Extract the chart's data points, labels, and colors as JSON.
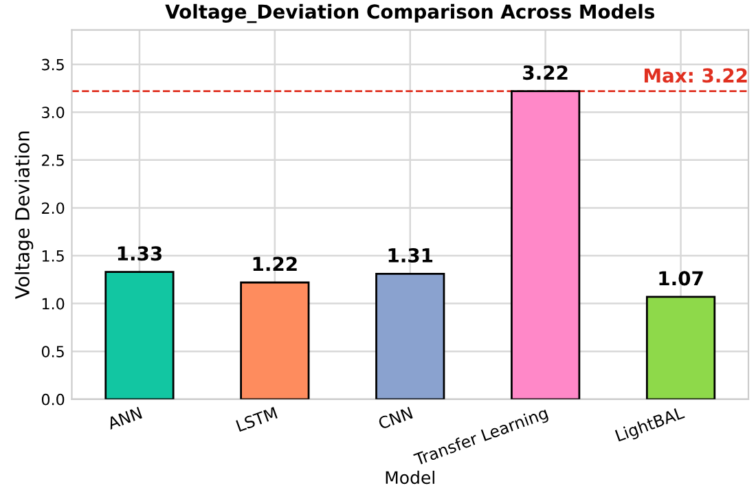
{
  "chart_data": {
    "type": "bar",
    "title": "Voltage_Deviation Comparison Across Models",
    "xlabel": "Model",
    "ylabel": "Voltage Deviation",
    "categories": [
      "ANN",
      "LSTM",
      "CNN",
      "Transfer Learning",
      "LightBAL"
    ],
    "values": [
      1.33,
      1.22,
      1.31,
      3.22,
      1.07
    ],
    "colors": [
      "#12c6a2",
      "#fe8c5e",
      "#8aa2cf",
      "#ff88c8",
      "#8ed94a"
    ],
    "ylim": [
      0,
      3.86
    ],
    "yticks": [
      {
        "value": 0,
        "label": "0.0"
      },
      0.5,
      {
        "value": 1,
        "label": "1.0"
      },
      1.5,
      {
        "value": 2,
        "label": "2.0"
      },
      2.5,
      {
        "value": 3,
        "label": "3.0"
      },
      3.5
    ],
    "ref_lines": [
      {
        "axis": "y",
        "value": 3.22,
        "label": "Max: 3.22",
        "color": "#e03020",
        "line_style": "dashed"
      }
    ],
    "data_labels": true,
    "grid": true
  }
}
